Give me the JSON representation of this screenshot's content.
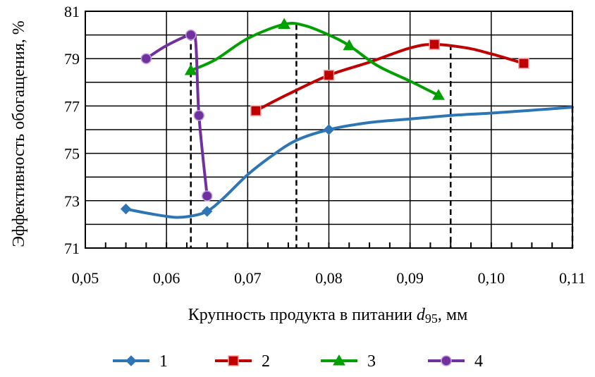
{
  "chart_data": {
    "type": "line",
    "xlabel_main": "Крупность продукта в питании ",
    "xlabel_var": "d",
    "xlabel_sub": "95",
    "xlabel_unit": ", мм",
    "ylabel": "Эффективность обогащения, %",
    "xlim": [
      0.05,
      0.11
    ],
    "ylim": [
      71,
      81
    ],
    "x_ticks": [
      "0,05",
      "0,06",
      "0,07",
      "0,08",
      "0,09",
      "0,10",
      "0,11"
    ],
    "x_tick_values": [
      0.05,
      0.06,
      0.07,
      0.08,
      0.09,
      0.1,
      0.11
    ],
    "y_ticks": [
      "71",
      "73",
      "75",
      "77",
      "79",
      "81"
    ],
    "y_tick_values": [
      71,
      73,
      75,
      77,
      79,
      81
    ],
    "grid": true,
    "legend_position": "bottom",
    "series": [
      {
        "name": "1",
        "color": "#2e75b6",
        "marker": "diamond",
        "markers": [
          [
            0.055,
            72.65
          ],
          [
            0.065,
            72.55
          ],
          [
            0.08,
            76.0
          ]
        ],
        "curve": [
          [
            0.055,
            72.65
          ],
          [
            0.058,
            72.45
          ],
          [
            0.061,
            72.3
          ],
          [
            0.063,
            72.35
          ],
          [
            0.065,
            72.55
          ],
          [
            0.067,
            73.1
          ],
          [
            0.07,
            74.1
          ],
          [
            0.073,
            74.9
          ],
          [
            0.076,
            75.55
          ],
          [
            0.08,
            76.0
          ],
          [
            0.085,
            76.3
          ],
          [
            0.09,
            76.45
          ],
          [
            0.095,
            76.6
          ],
          [
            0.1,
            76.7
          ],
          [
            0.105,
            76.82
          ],
          [
            0.11,
            76.95
          ]
        ]
      },
      {
        "name": "2",
        "color": "#c00000",
        "marker": "square",
        "markers": [
          [
            0.071,
            76.8
          ],
          [
            0.08,
            78.3
          ],
          [
            0.093,
            79.6
          ],
          [
            0.104,
            78.8
          ]
        ],
        "curve": [
          [
            0.071,
            76.8
          ],
          [
            0.075,
            77.5
          ],
          [
            0.08,
            78.3
          ],
          [
            0.085,
            78.85
          ],
          [
            0.09,
            79.45
          ],
          [
            0.093,
            79.6
          ],
          [
            0.097,
            79.45
          ],
          [
            0.1,
            79.2
          ],
          [
            0.104,
            78.8
          ]
        ]
      },
      {
        "name": "3",
        "color": "#00a000",
        "marker": "triangle",
        "markers": [
          [
            0.063,
            78.5
          ],
          [
            0.0745,
            80.45
          ],
          [
            0.0825,
            79.55
          ],
          [
            0.0935,
            77.45
          ]
        ],
        "curve": [
          [
            0.063,
            78.5
          ],
          [
            0.066,
            78.95
          ],
          [
            0.07,
            79.85
          ],
          [
            0.0745,
            80.45
          ],
          [
            0.077,
            80.4
          ],
          [
            0.08,
            80.0
          ],
          [
            0.0825,
            79.55
          ],
          [
            0.086,
            78.7
          ],
          [
            0.09,
            78.05
          ],
          [
            0.0935,
            77.45
          ]
        ]
      },
      {
        "name": "4",
        "color": "#7030a0",
        "marker": "circle",
        "markers": [
          [
            0.0575,
            79.0
          ],
          [
            0.063,
            80.0
          ],
          [
            0.064,
            76.6
          ],
          [
            0.065,
            73.2
          ]
        ],
        "curve": [
          [
            0.0575,
            79.0
          ],
          [
            0.06,
            79.55
          ],
          [
            0.063,
            80.0
          ],
          [
            0.0636,
            79.7
          ],
          [
            0.064,
            76.6
          ],
          [
            0.065,
            73.2
          ]
        ]
      }
    ],
    "guide_lines_x": [
      0.063,
      0.076,
      0.095,
      0.11
    ]
  }
}
